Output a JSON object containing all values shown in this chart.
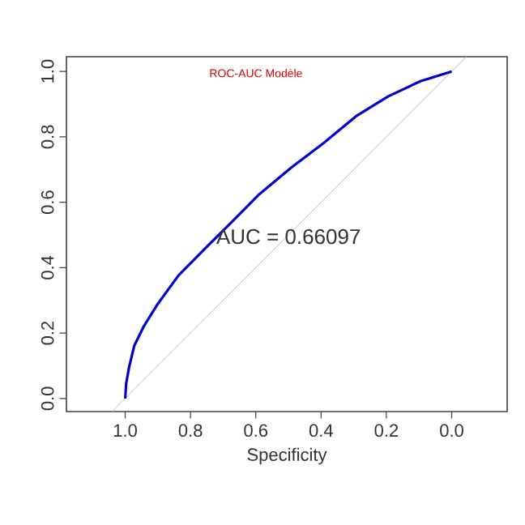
{
  "chart_data": {
    "type": "line",
    "title": "ROC-AUC Modèle",
    "xlabel": "Specificity",
    "annotations": [
      "AUC =  0.66097"
    ],
    "xlim": [
      1.18,
      -0.17
    ],
    "ylim": [
      -0.04,
      1.045
    ],
    "xticks": [
      {
        "value": 1,
        "label": "1.0"
      },
      {
        "value": 0.8,
        "label": "0.8"
      },
      {
        "value": 0.6,
        "label": "0.6"
      },
      {
        "value": 0.4,
        "label": "0.4"
      },
      {
        "value": 0.2,
        "label": "0.2"
      },
      {
        "value": 0,
        "label": "0.0"
      }
    ],
    "yticks": [
      {
        "value": 0,
        "label": "0.0"
      },
      {
        "value": 0.2,
        "label": "0.2"
      },
      {
        "value": 0.4,
        "label": "0.4"
      },
      {
        "value": 0.6,
        "label": "0.6"
      },
      {
        "value": 0.8,
        "label": "0.8"
      },
      {
        "value": 1,
        "label": "1.0"
      }
    ],
    "grid": false,
    "marker": "none",
    "series": [
      {
        "color": "#bebebe",
        "x": [
          1.04,
          -0.045
        ],
        "values": [
          -0.04,
          1.045
        ]
      },
      {
        "color": "#0000cc",
        "x": [
          1.0,
          0.997,
          0.988,
          0.972,
          0.944,
          0.903,
          0.837,
          0.755,
          0.672,
          0.59,
          0.491,
          0.392,
          0.293,
          0.194,
          0.096,
          0.0
        ],
        "values": [
          0,
          0.046,
          0.096,
          0.162,
          0.219,
          0.285,
          0.376,
          0.459,
          0.541,
          0.624,
          0.706,
          0.781,
          0.863,
          0.924,
          0.97,
          1.0
        ]
      }
    ]
  }
}
